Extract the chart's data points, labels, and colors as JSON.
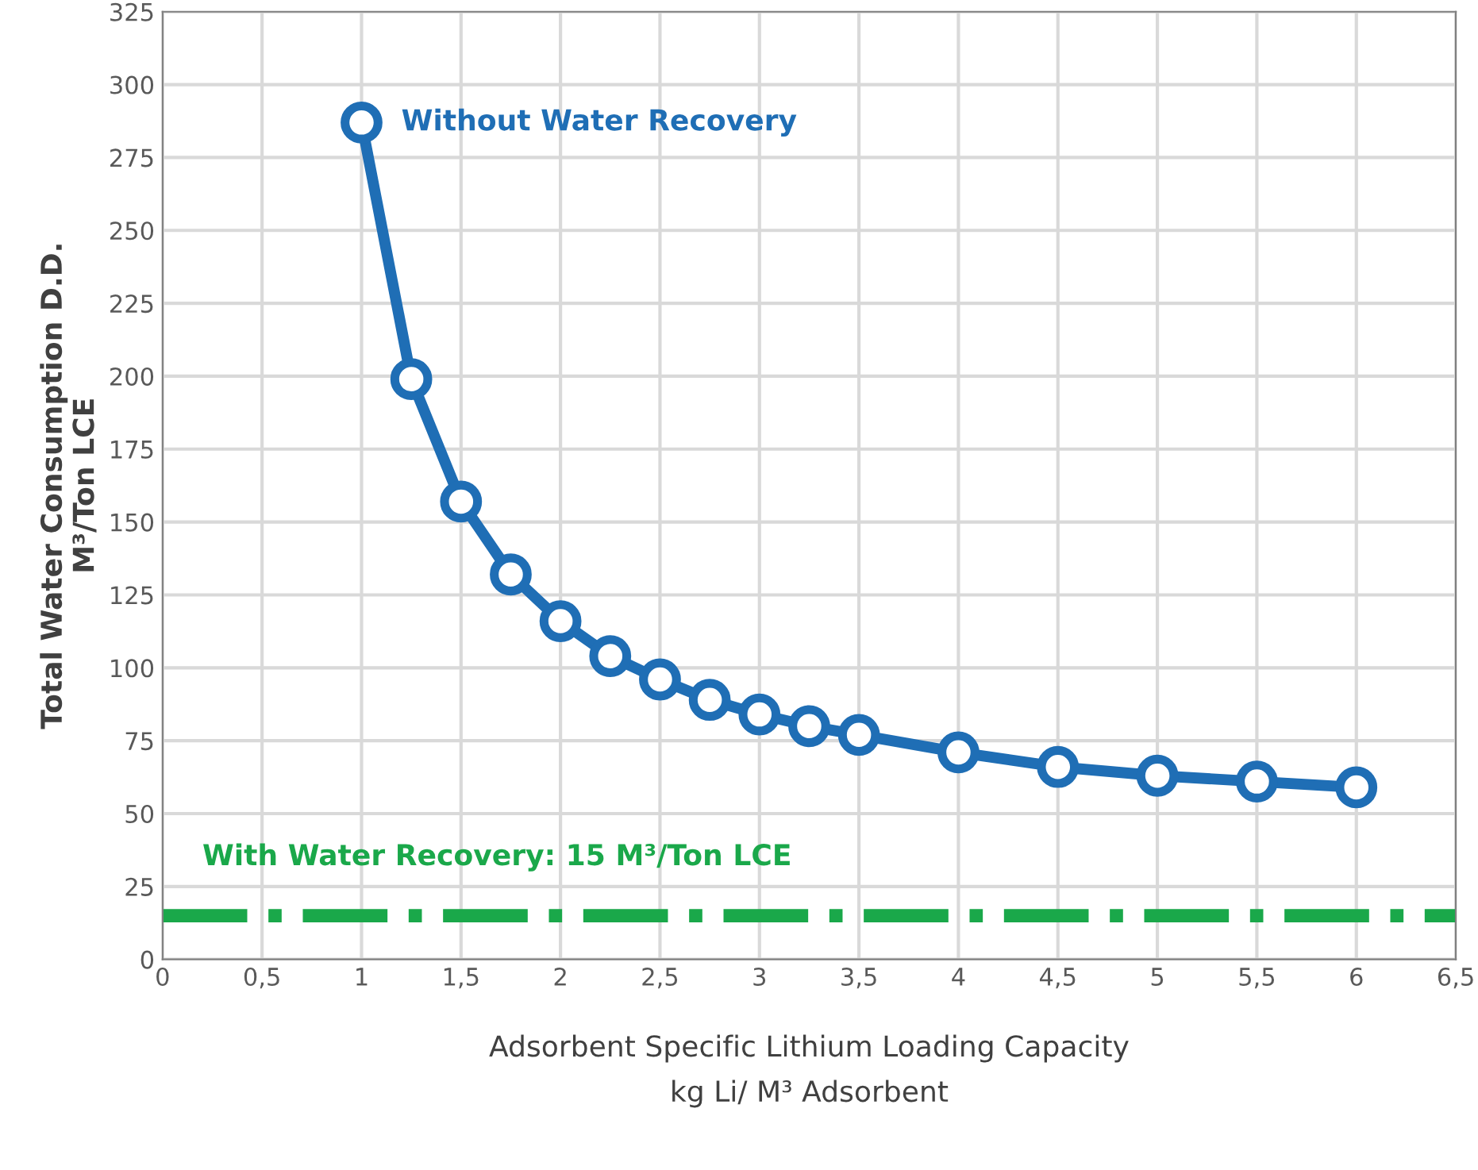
{
  "chart_data": {
    "type": "line",
    "xlabel": "Adsorbent Specific Lithium Loading Capacity\nkg Li/ M³ Adsorbent",
    "ylabel": "Total Water Consumption D.D.\nM³/Ton LCE",
    "series": [
      {
        "name": "Without Water Recovery",
        "color": "#1f6eb5",
        "x": [
          1,
          1.25,
          1.5,
          1.75,
          2,
          2.25,
          2.5,
          2.75,
          3,
          3.25,
          3.5,
          4,
          4.5,
          5,
          5.5,
          6
        ],
        "values": [
          287,
          199,
          157,
          132,
          116,
          104,
          96,
          89,
          84,
          80,
          77,
          71,
          66,
          63,
          61,
          59
        ]
      }
    ],
    "marker": "circle",
    "line_style": "solid",
    "grid": true,
    "legend": false,
    "xlim": [
      0,
      6.5
    ],
    "xticks": [
      0,
      {
        "value": 0.5,
        "label": "0,5"
      },
      1,
      {
        "value": 1.5,
        "label": "1,5"
      },
      2,
      {
        "value": 2.5,
        "label": "2,5"
      },
      3,
      {
        "value": 3.5,
        "label": "3,5"
      },
      4,
      {
        "value": 4.5,
        "label": "4,5"
      },
      5,
      {
        "value": 5.5,
        "label": "5,5"
      },
      6,
      {
        "value": 6.5,
        "label": "6,5"
      }
    ],
    "ylim": [
      0,
      325
    ],
    "yticks": [
      0,
      25,
      50,
      75,
      100,
      125,
      150,
      175,
      200,
      225,
      250,
      275,
      300,
      325
    ],
    "ref_lines": [
      {
        "axis": "y",
        "value": 15,
        "label": "With Water Recovery: 15 M³/Ton LCE",
        "color": "#1aa84a",
        "line_style": "dashdot"
      }
    ]
  }
}
